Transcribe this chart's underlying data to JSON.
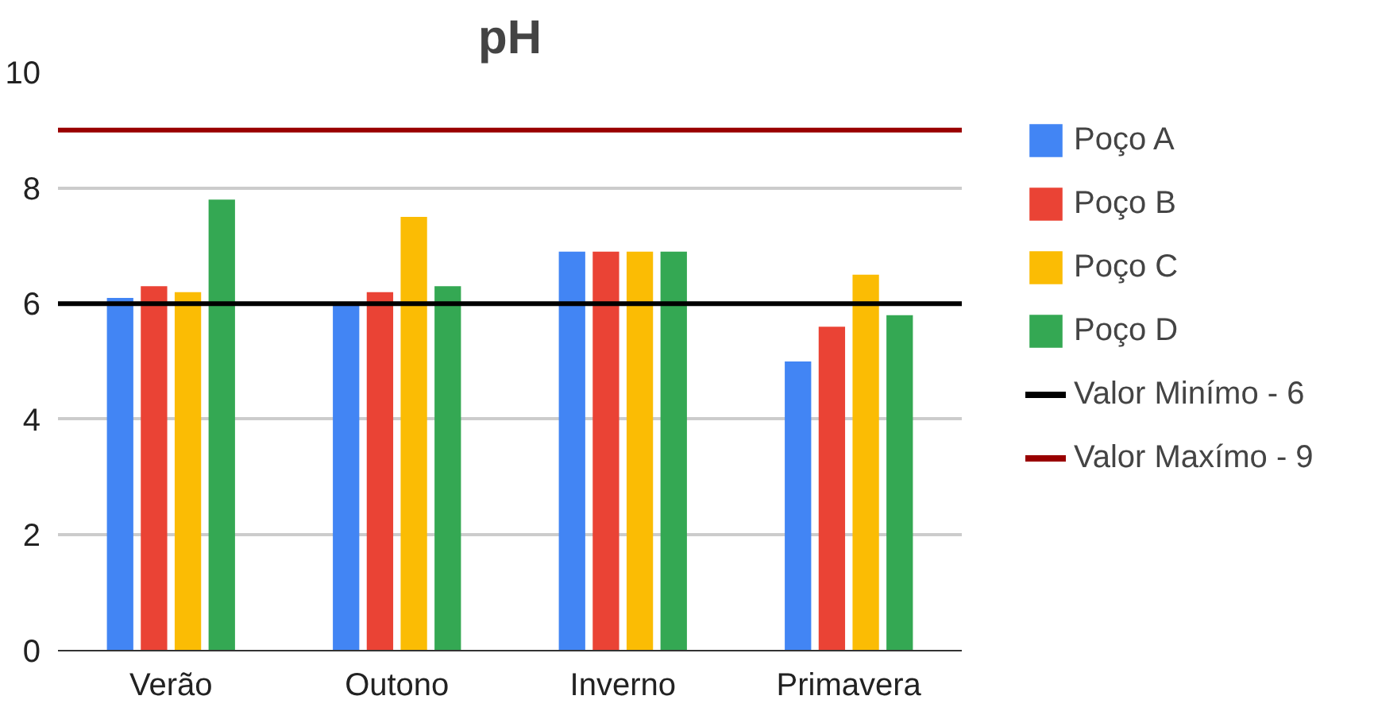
{
  "chart_data": {
    "type": "bar",
    "title": "pH",
    "categories": [
      "Verão",
      "Outono",
      "Inverno",
      "Primavera"
    ],
    "series": [
      {
        "name": "Poço A",
        "color": "#4285f4",
        "values": [
          6.1,
          6.0,
          6.9,
          5.0
        ]
      },
      {
        "name": "Poço B",
        "color": "#ea4335",
        "values": [
          6.3,
          6.2,
          6.9,
          5.6
        ]
      },
      {
        "name": "Poço C",
        "color": "#fbbc04",
        "values": [
          6.2,
          7.5,
          6.9,
          6.5
        ]
      },
      {
        "name": "Poço D",
        "color": "#34a853",
        "values": [
          7.8,
          6.3,
          6.9,
          5.8
        ]
      }
    ],
    "ref_lines": [
      {
        "axis": "y",
        "value": 6,
        "label": "Valor Minímo - 6",
        "color": "#000000"
      },
      {
        "axis": "y",
        "value": 9,
        "label": "Valor Maxímo - 9",
        "color": "#990000"
      }
    ],
    "ylim": [
      0,
      10
    ],
    "yticks": [
      0,
      2,
      4,
      6,
      8,
      10
    ],
    "grid": "y",
    "legend": "right"
  }
}
